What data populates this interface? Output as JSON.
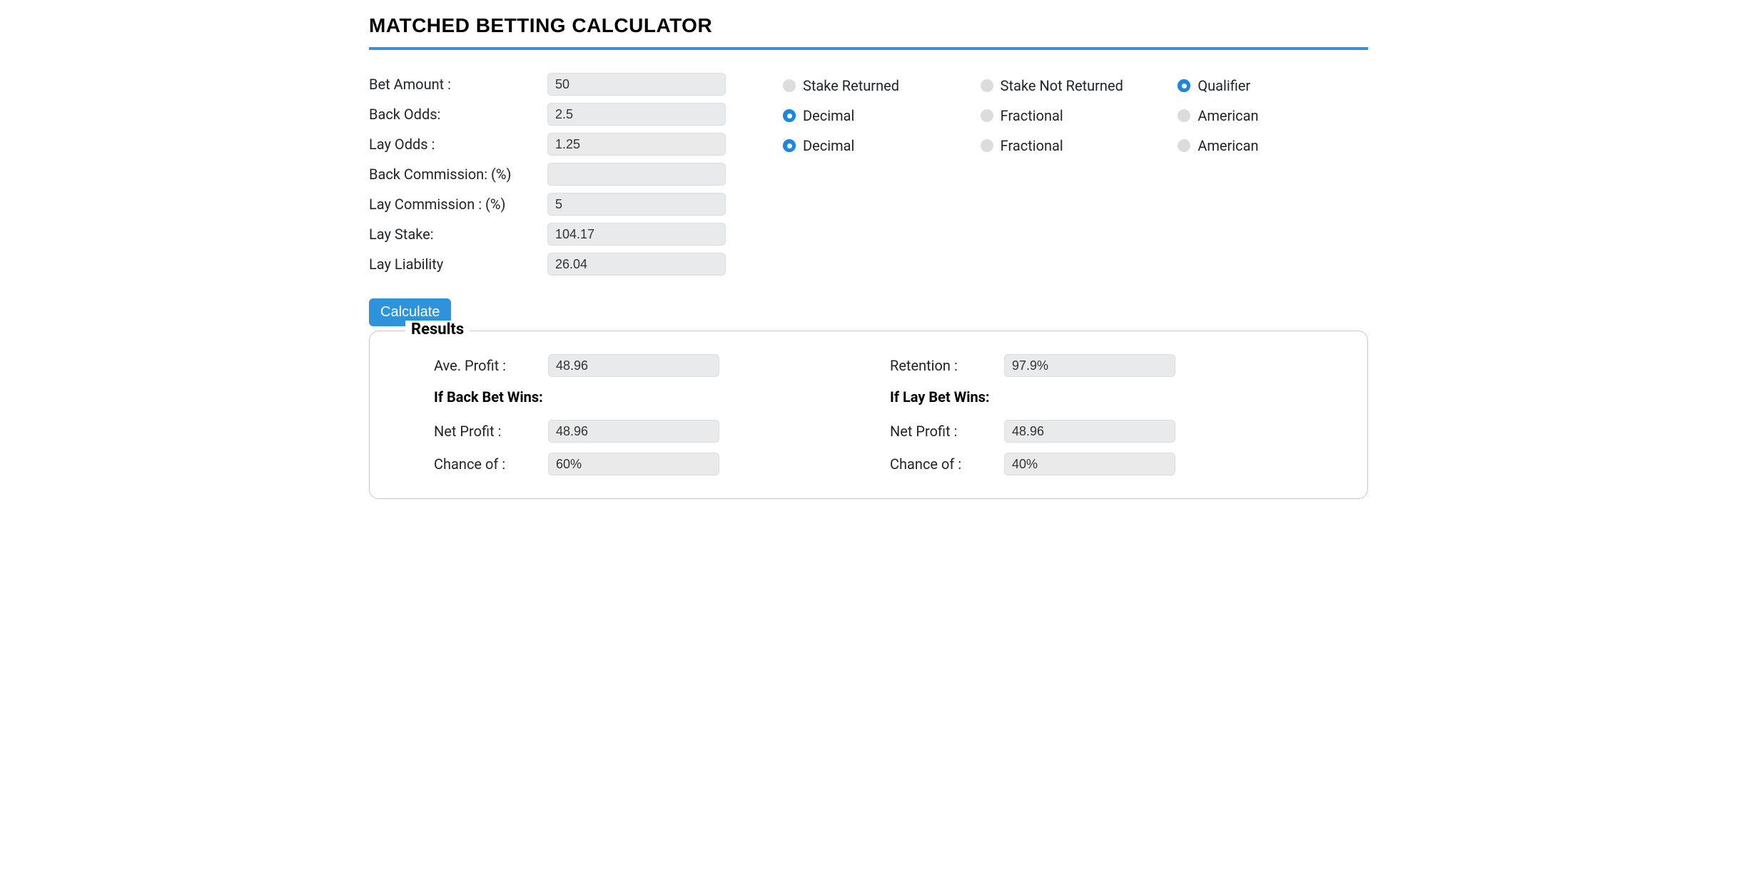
{
  "title": "MATCHED BETTING CALCULATOR",
  "colors": {
    "accent": "#3b8dd6",
    "button": "#2d93dd",
    "input_bg": "#e9eaec",
    "radio_unselected": "#dcdcdc",
    "radio_selected": "#1d87df",
    "text": "#212529",
    "border": "#c7c7c7",
    "background": "#ffffff"
  },
  "form": {
    "bet_amount": {
      "label": "Bet Amount :",
      "value": "50"
    },
    "back_odds": {
      "label": "Back Odds:",
      "value": "2.5"
    },
    "lay_odds": {
      "label": "Lay Odds :",
      "value": "1.25"
    },
    "back_commission": {
      "label": "Back Commission: (%)",
      "value": ""
    },
    "lay_commission": {
      "label": "Lay Commission : (%)",
      "value": "5"
    },
    "lay_stake": {
      "label": "Lay Stake:",
      "value": "104.17"
    },
    "lay_liability": {
      "label": "Lay Liability",
      "value": "26.04"
    }
  },
  "radios": {
    "bet_type": {
      "options": [
        "Stake Returned",
        "Stake Not Returned",
        "Qualifier"
      ],
      "selected": 2
    },
    "back_odds_format": {
      "options": [
        "Decimal",
        "Fractional",
        "American"
      ],
      "selected": 0
    },
    "lay_odds_format": {
      "options": [
        "Decimal",
        "Fractional",
        "American"
      ],
      "selected": 0
    }
  },
  "calculate_label": "Calculate",
  "results": {
    "legend": "Results",
    "left": {
      "ave_profit": {
        "label": "Ave. Profit :",
        "value": "48.96"
      },
      "heading": "If Back Bet Wins:",
      "net_profit": {
        "label": "Net Profit :",
        "value": "48.96"
      },
      "chance": {
        "label": "Chance of :",
        "value": "60%"
      }
    },
    "right": {
      "retention": {
        "label": "Retention :",
        "value": "97.9%"
      },
      "heading": "If Lay Bet Wins:",
      "net_profit": {
        "label": "Net Profit :",
        "value": "48.96"
      },
      "chance": {
        "label": "Chance of :",
        "value": "40%"
      }
    }
  }
}
